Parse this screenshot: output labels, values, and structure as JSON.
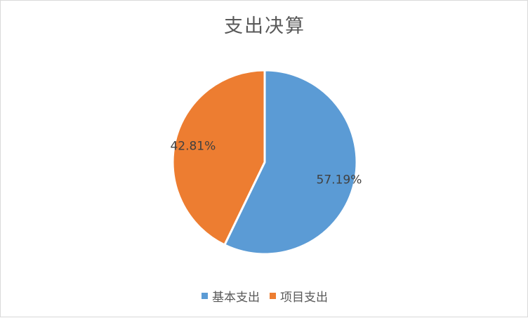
{
  "chart_data": {
    "type": "pie",
    "title": "支出决算",
    "categories": [
      "基本支出",
      "项目支出"
    ],
    "values": [
      57.19,
      42.81
    ],
    "labels": [
      "57.19%",
      "42.81%"
    ],
    "colors": [
      "#5b9bd5",
      "#ed7d31"
    ],
    "legend_position": "bottom"
  }
}
